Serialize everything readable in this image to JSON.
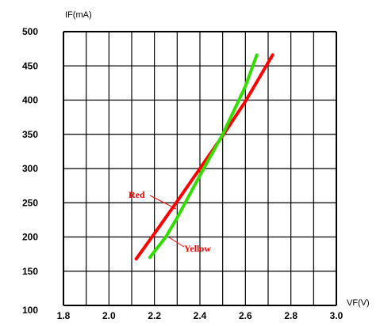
{
  "chart_data": {
    "type": "line",
    "xlabel": "VF(V)",
    "ylabel": "IF(mA)",
    "xlim": [
      1.8,
      3.0
    ],
    "ylim": [
      100,
      500
    ],
    "x_ticks": [
      "1.8",
      "2.0",
      "2.2",
      "2.4",
      "2.6",
      "2.8",
      "3.0"
    ],
    "y_ticks": [
      "100",
      "150",
      "200",
      "250",
      "300",
      "350",
      "400",
      "450",
      "500"
    ],
    "grid": true,
    "series": [
      {
        "name": "Red",
        "color": "#ff0000",
        "x": [
          2.12,
          2.2,
          2.3,
          2.4,
          2.5,
          2.6,
          2.72
        ],
        "y": [
          168,
          205,
          252,
          300,
          348,
          398,
          466
        ]
      },
      {
        "name": "Yellow",
        "color": "#33dd00",
        "x": [
          2.18,
          2.25,
          2.3,
          2.4,
          2.5,
          2.6,
          2.65
        ],
        "y": [
          170,
          200,
          228,
          290,
          350,
          420,
          466
        ]
      }
    ]
  }
}
